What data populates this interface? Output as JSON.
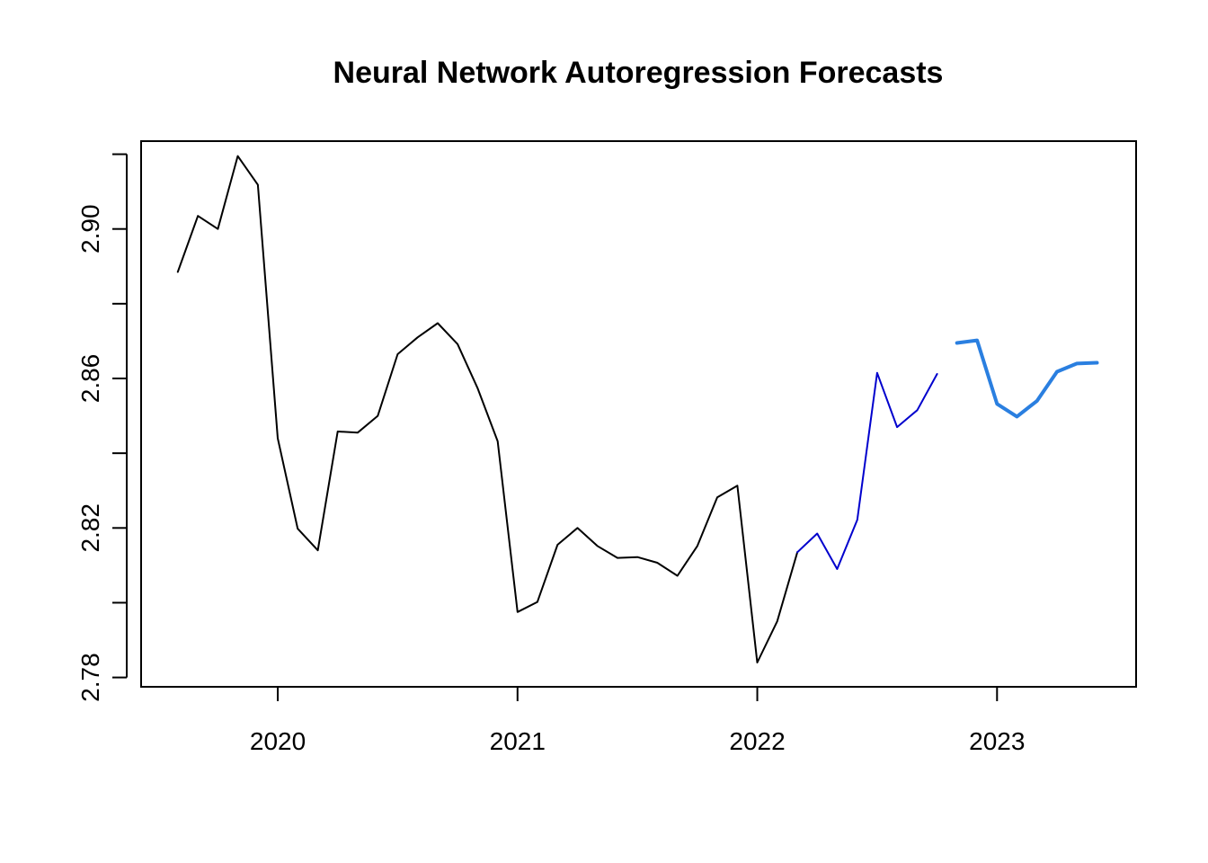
{
  "chart_data": {
    "type": "line",
    "title": "Neural Network Autoregression Forecasts",
    "xlabel": "",
    "ylabel": "",
    "xlim": [
      2019.43,
      2023.58
    ],
    "ylim": [
      2.7775,
      2.9235
    ],
    "x_ticks": [
      2020,
      2021,
      2022,
      2023
    ],
    "x_tick_labels": [
      "2020",
      "2021",
      "2022",
      "2023"
    ],
    "y_ticks": [
      2.78,
      2.8,
      2.82,
      2.84,
      2.86,
      2.88,
      2.9,
      2.92
    ],
    "y_tick_labels": [
      "2.78",
      "",
      "2.82",
      "",
      "2.86",
      "",
      "2.90",
      ""
    ],
    "grid": false,
    "legend": "none",
    "series": [
      {
        "style": "thin",
        "color": "#000000",
        "x": [
          2019.583,
          2019.667,
          2019.75,
          2019.833,
          2019.917,
          2020.0,
          2020.083,
          2020.167,
          2020.25,
          2020.333,
          2020.417,
          2020.5,
          2020.583,
          2020.667,
          2020.75,
          2020.833,
          2020.917,
          2021.0,
          2021.083,
          2021.167,
          2021.25,
          2021.333,
          2021.417,
          2021.5,
          2021.583,
          2021.667,
          2021.75,
          2021.833,
          2021.917,
          2022.0,
          2022.083,
          2022.167
        ],
        "y": [
          2.8885,
          2.9035,
          2.9,
          2.9195,
          2.9118,
          2.844,
          2.8198,
          2.814,
          2.8458,
          2.8455,
          2.85,
          2.8665,
          2.871,
          2.8748,
          2.8692,
          2.8575,
          2.8432,
          2.7975,
          2.8002,
          2.8155,
          2.82,
          2.8152,
          2.812,
          2.8122,
          2.8107,
          2.8072,
          2.8152,
          2.8282,
          2.8313,
          2.784,
          2.795,
          2.8135
        ]
      },
      {
        "style": "thin",
        "color": "#0000CD",
        "x": [
          2022.167,
          2022.25,
          2022.333,
          2022.417,
          2022.5,
          2022.583,
          2022.667,
          2022.75
        ],
        "y": [
          2.8135,
          2.8185,
          2.809,
          2.8222,
          2.8615,
          2.847,
          2.8515,
          2.8612
        ]
      },
      {
        "style": "thick",
        "color": "#2A7FE0",
        "x": [
          2022.833,
          2022.917,
          2023.0,
          2023.083,
          2023.167,
          2023.25,
          2023.333,
          2023.417
        ],
        "y": [
          2.8695,
          2.8702,
          2.8532,
          2.8498,
          2.854,
          2.8618,
          2.864,
          2.8642
        ]
      }
    ]
  }
}
